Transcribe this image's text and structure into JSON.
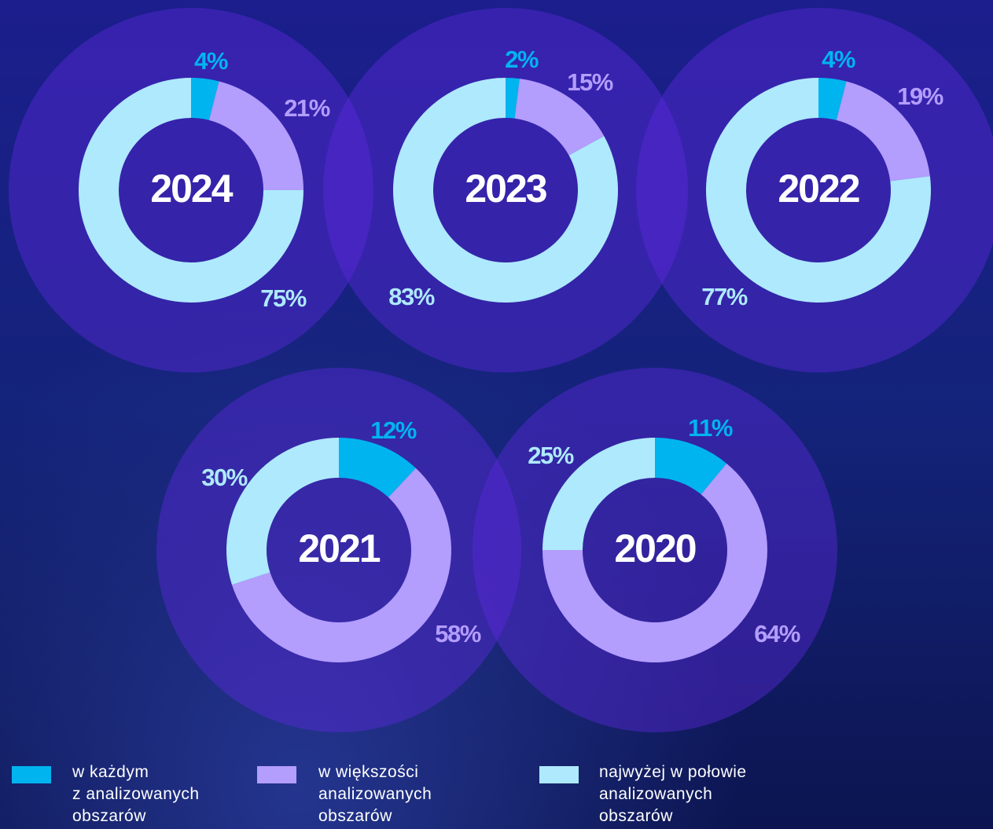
{
  "chart_data": [
    {
      "type": "donut",
      "title": "2024",
      "values": [
        4,
        21,
        75
      ],
      "value_labels": [
        "4%",
        "21%",
        "75%"
      ]
    },
    {
      "type": "donut",
      "title": "2023",
      "values": [
        2,
        15,
        83
      ],
      "value_labels": [
        "2%",
        "15%",
        "83%"
      ]
    },
    {
      "type": "donut",
      "title": "2022",
      "values": [
        4,
        19,
        77
      ],
      "value_labels": [
        "4%",
        "19%",
        "77%"
      ]
    },
    {
      "type": "donut",
      "title": "2021",
      "values": [
        12,
        58,
        30
      ],
      "value_labels": [
        "12%",
        "58%",
        "30%"
      ]
    },
    {
      "type": "donut",
      "title": "2020",
      "values": [
        11,
        64,
        25
      ],
      "value_labels": [
        "11%",
        "64%",
        "25%"
      ]
    }
  ],
  "legend": {
    "labels": [
      "w każdym\nz analizowanych\nobszarów",
      "w większości\nanalizowanych\nobszarów",
      "najwyżej w połowie\nanalizowanych\nobszarów"
    ],
    "colors": [
      "#00b4f0",
      "#b39dfd",
      "#aee9fd"
    ]
  }
}
